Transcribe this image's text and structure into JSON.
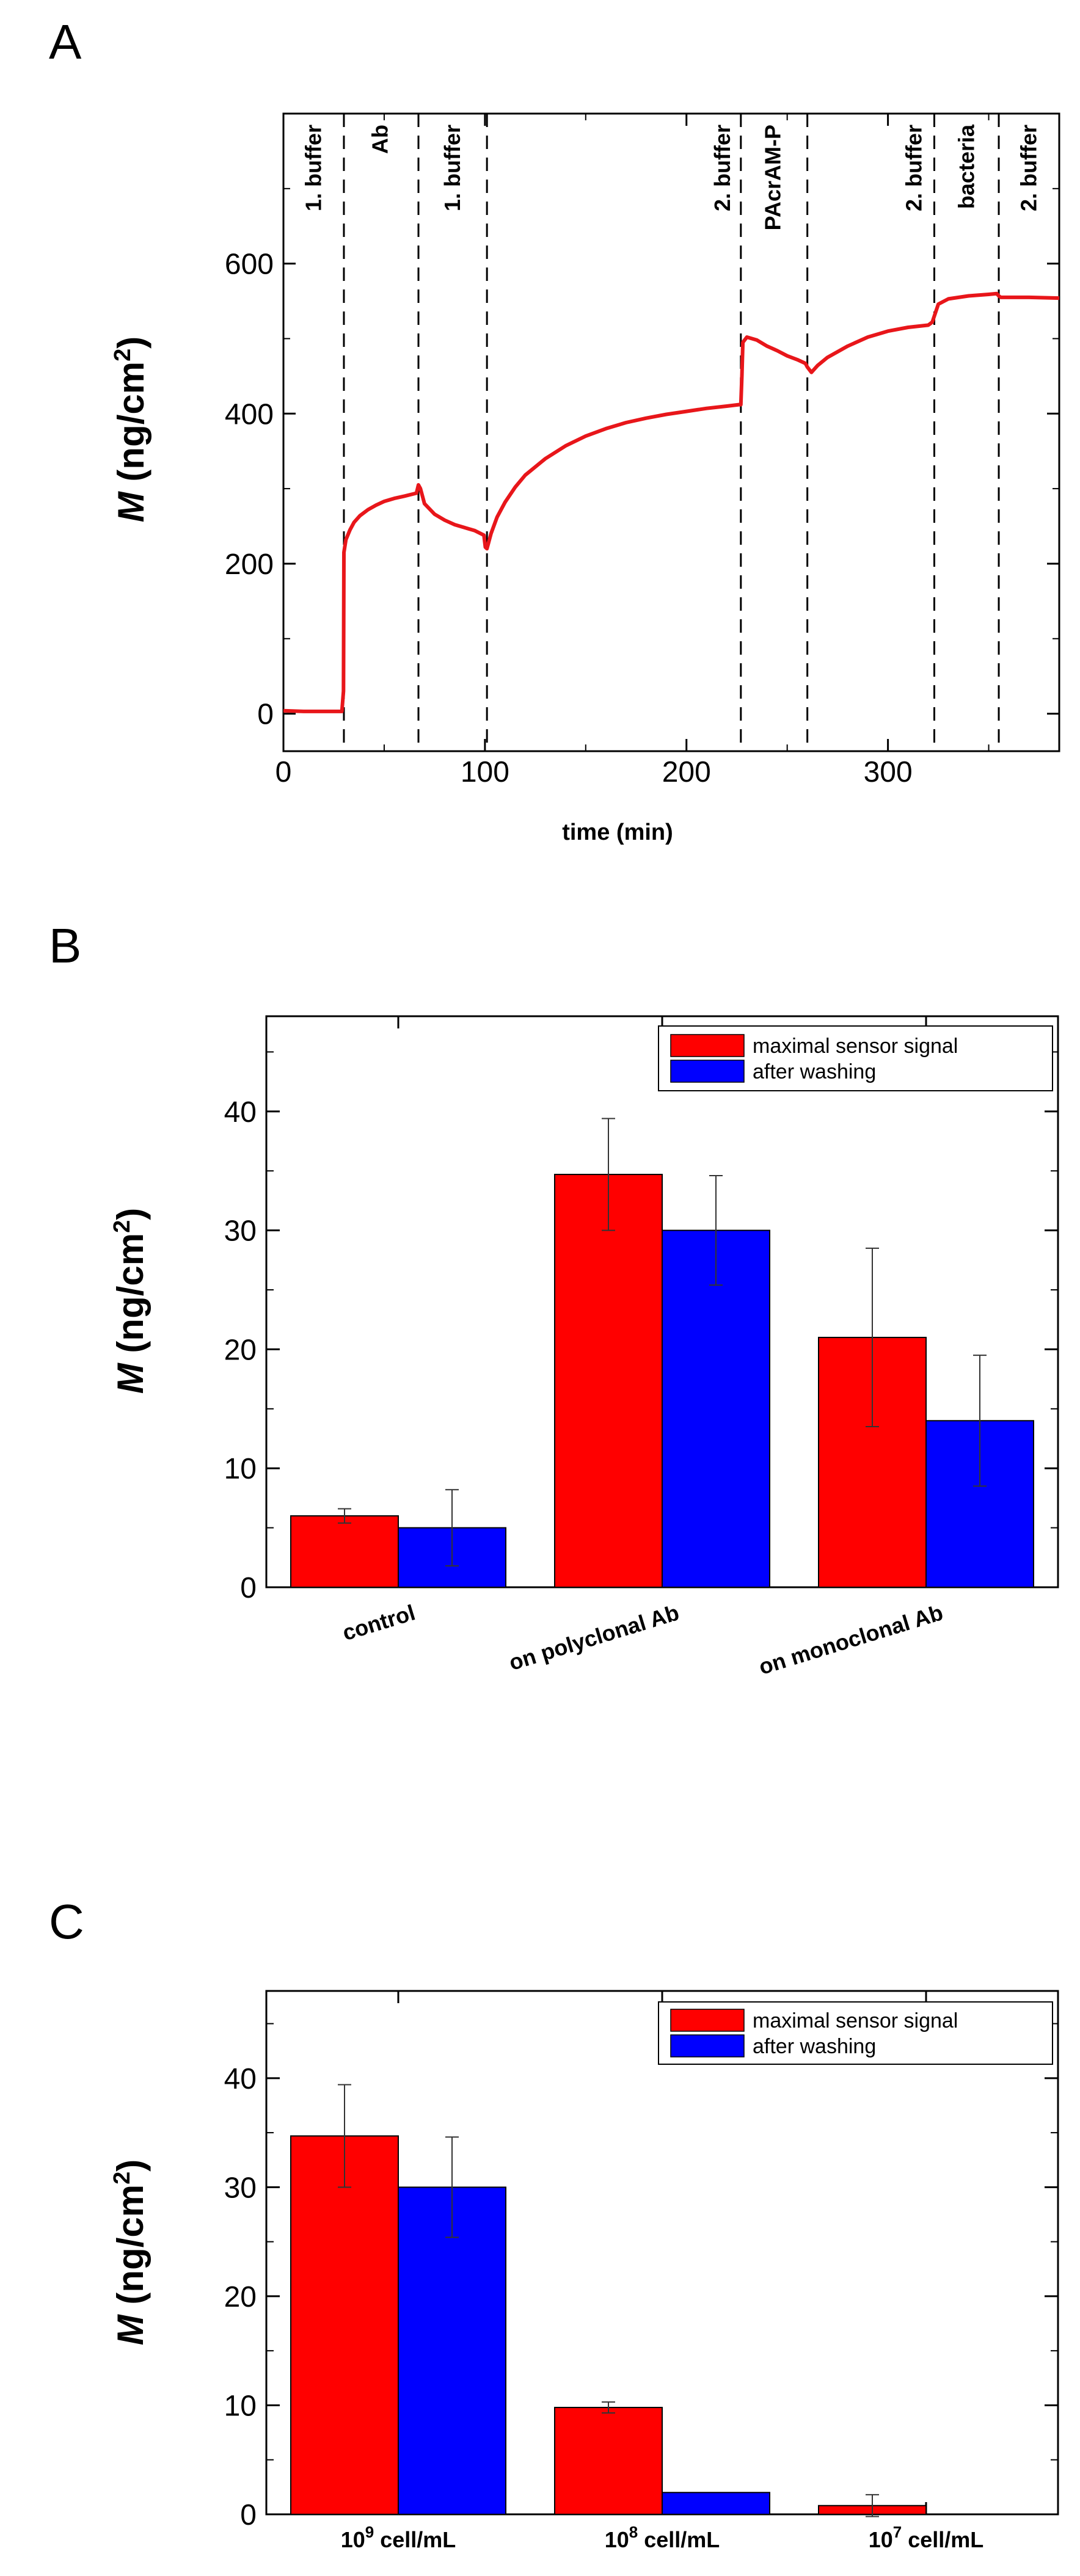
{
  "panels": {
    "a": "A",
    "b": "B",
    "c": "C"
  },
  "chart_data": [
    {
      "type": "line",
      "ylabel_italic": "M",
      "ylabel_rest": " (ng/cm",
      "ylabel_sup": "2",
      "ylabel_close": ")",
      "xlabel": "time (min)",
      "xlim": [
        0,
        385
      ],
      "ylim": [
        -50,
        800
      ],
      "xticks": [
        0,
        100,
        200,
        300
      ],
      "yticks": [
        0,
        200,
        400,
        600
      ],
      "color": "#e8161a",
      "phase_boundaries": [
        30,
        67,
        101,
        227,
        260,
        323,
        355
      ],
      "phase_labels": [
        {
          "text": "1. buffer",
          "x": 15
        },
        {
          "text": "Ab",
          "x": 48
        },
        {
          "text": "1. buffer",
          "x": 84
        },
        {
          "text": "2. buffer",
          "x": 218
        },
        {
          "text": "PAcrAM-P",
          "x": 243
        },
        {
          "text": "2. buffer",
          "x": 313
        },
        {
          "text": "bacteria",
          "x": 339
        },
        {
          "text": "2. buffer",
          "x": 370
        }
      ],
      "series": [
        {
          "name": "M",
          "x": [
            0,
            10,
            20,
            29,
            29.8,
            30,
            31,
            33,
            35,
            38,
            42,
            46,
            50,
            55,
            60,
            66,
            67,
            68,
            70,
            75,
            80,
            85,
            90,
            95,
            99.5,
            100.2,
            101,
            103,
            106,
            110,
            115,
            120,
            130,
            140,
            150,
            160,
            170,
            180,
            190,
            200,
            210,
            220,
            226,
            227,
            227.5,
            228,
            230,
            235,
            240,
            245,
            250,
            255,
            259,
            260,
            262,
            265,
            270,
            280,
            290,
            300,
            310,
            320,
            322,
            323,
            325,
            330,
            340,
            350,
            354,
            355,
            356,
            360,
            370,
            385
          ],
          "y": [
            4,
            3,
            3,
            3,
            30,
            215,
            232,
            245,
            255,
            264,
            272,
            278,
            283,
            287,
            290,
            294,
            305,
            300,
            280,
            266,
            258,
            252,
            248,
            244,
            238,
            222,
            220,
            240,
            262,
            282,
            302,
            318,
            340,
            357,
            370,
            380,
            388,
            394,
            399,
            403,
            407,
            410,
            412,
            412,
            450,
            495,
            502,
            498,
            490,
            484,
            477,
            472,
            467,
            462,
            455,
            464,
            475,
            490,
            502,
            510,
            515,
            518,
            522,
            530,
            546,
            553,
            557,
            559,
            560,
            557,
            555,
            555,
            555,
            554
          ]
        }
      ]
    },
    {
      "type": "bar",
      "ylabel_italic": "M",
      "ylabel_rest": " (ng/cm",
      "ylabel_sup": "2",
      "ylabel_close": ")",
      "categories": [
        "control",
        "on polyclonal Ab",
        "on monoclonal Ab"
      ],
      "ylim": [
        0,
        48
      ],
      "yticks": [
        0,
        10,
        20,
        30,
        40
      ],
      "series": [
        {
          "name": "maximal sensor signal",
          "color": "#ff0000",
          "values": [
            6,
            34.7,
            21
          ],
          "errors": [
            0.6,
            4.7,
            7.5
          ]
        },
        {
          "name": "after washing",
          "color": "#0000ff",
          "values": [
            5,
            30,
            14
          ],
          "errors": [
            3.2,
            4.6,
            5.5
          ]
        }
      ],
      "legend": "top-right"
    },
    {
      "type": "bar",
      "ylabel_italic": "M",
      "ylabel_rest": " (ng/cm",
      "ylabel_sup": "2",
      "ylabel_close": ")",
      "categories": [
        {
          "base": "10",
          "exp": "9",
          "unit": " cell/mL"
        },
        {
          "base": "10",
          "exp": "8",
          "unit": " cell/mL"
        },
        {
          "base": "10",
          "exp": "7",
          "unit": " cell/mL"
        }
      ],
      "ylim": [
        0,
        48
      ],
      "yticks": [
        0,
        10,
        20,
        30,
        40
      ],
      "series": [
        {
          "name": "maximal sensor signal",
          "color": "#ff0000",
          "values": [
            34.7,
            9.8,
            0.8
          ],
          "errors": [
            4.7,
            0.5,
            1.0
          ]
        },
        {
          "name": "after washing",
          "color": "#0000ff",
          "values": [
            30,
            2,
            0
          ],
          "errors": [
            4.6,
            0,
            0
          ]
        }
      ],
      "legend": "top-right"
    }
  ]
}
